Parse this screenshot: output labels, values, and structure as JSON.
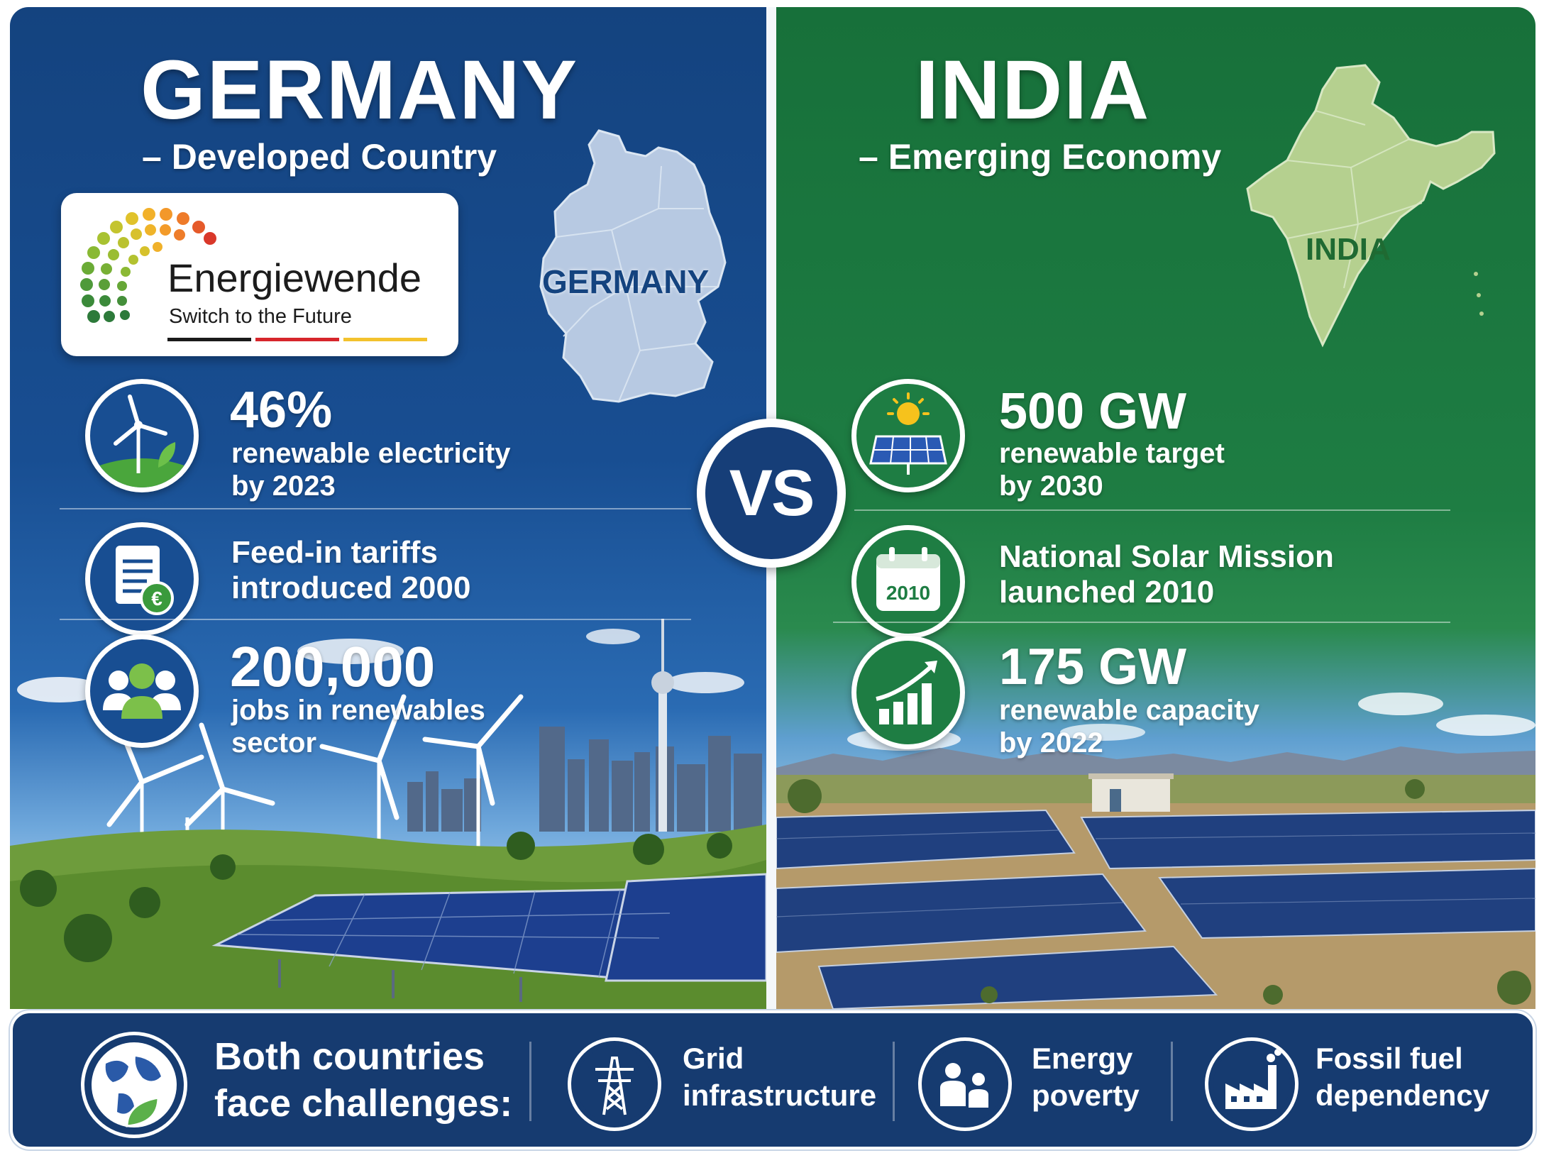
{
  "germany": {
    "title": "GERMANY",
    "subtitle": "– Developed Country",
    "logo": {
      "name": "Energiewende",
      "tagline": "Switch to the Future"
    },
    "map_label": "GERMANY",
    "stats": [
      {
        "value": "46%",
        "line1": "renewable electricity",
        "line2": "by 2023",
        "icon": "wind-turbine-icon"
      },
      {
        "value": "",
        "line1": "Feed-in tariffs",
        "line2": "introduced 2000",
        "icon": "euro-document-icon"
      },
      {
        "value": "200,000",
        "line1": "jobs in renewables",
        "line2": "sector",
        "icon": "people-icon"
      }
    ]
  },
  "india": {
    "title": "INDIA",
    "subtitle": "– Emerging Economy",
    "map_label": "INDIA",
    "stats": [
      {
        "value": "500 GW",
        "line1": "renewable target",
        "line2": "by 2030",
        "icon": "solar-panel-sun-icon"
      },
      {
        "value": "",
        "line1": "National Solar Mission",
        "line2": "launched 2010",
        "icon": "calendar-icon",
        "icon_text": "2010"
      },
      {
        "value": "175 GW",
        "line1": "renewable capacity",
        "line2": "by 2022",
        "icon": "growth-chart-icon"
      }
    ]
  },
  "vs_label": "VS",
  "footer": {
    "headline_line1": "Both countries",
    "headline_line2": "face challenges:",
    "challenges": [
      {
        "line1": "Grid",
        "line2": "infrastructure",
        "icon": "power-pylon-icon"
      },
      {
        "line1": "Energy",
        "line2": "poverty",
        "icon": "family-icon"
      },
      {
        "line1": "Fossil fuel",
        "line2": "dependency",
        "icon": "factory-icon"
      }
    ]
  },
  "colors": {
    "germany_blue": "#184e92",
    "india_green": "#1e7d43",
    "footer_navy": "#163b70"
  }
}
